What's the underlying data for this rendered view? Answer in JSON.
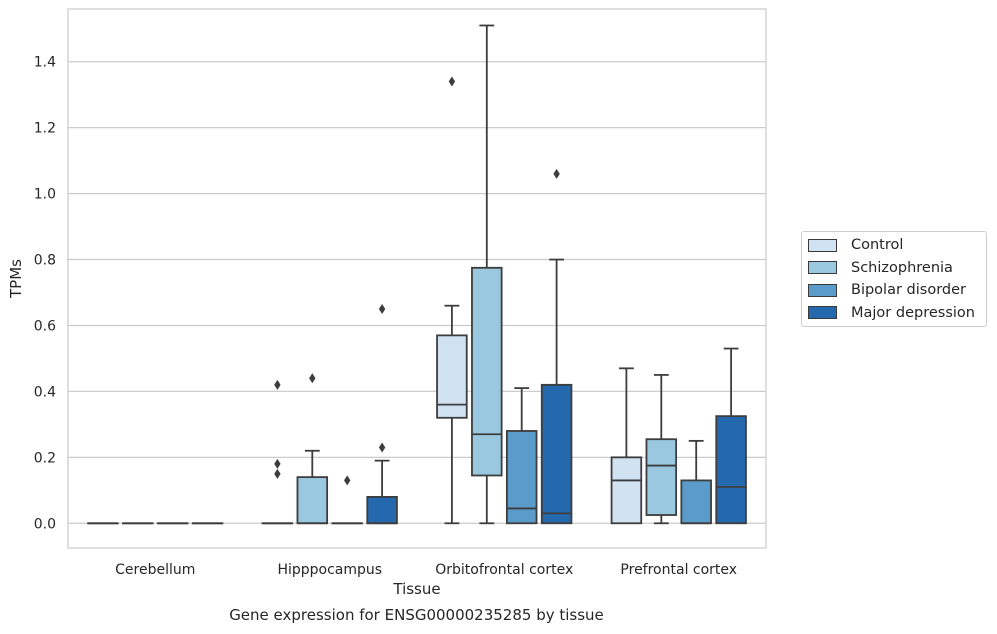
{
  "caption": "Gene expression for ENSG00000235285 by tissue",
  "chart_data": {
    "type": "box",
    "xlabel": "Tissue",
    "ylabel": "TPMs",
    "ylim": [
      -0.075,
      1.56
    ],
    "yticks": [
      0.0,
      0.2,
      0.4,
      0.6,
      0.8,
      1.0,
      1.2,
      1.4
    ],
    "ytick_labels": [
      "0.0",
      "0.2",
      "0.4",
      "0.6",
      "0.8",
      "1.0",
      "1.2",
      "1.4"
    ],
    "grid": "horizontal",
    "legend_position": "right",
    "categories": [
      "Cerebellum",
      "Hipppocampus",
      "Orbitofrontal cortex",
      "Prefrontal cortex"
    ],
    "series": [
      {
        "name": "Control",
        "color": "#d1e2f2",
        "boxes": [
          {
            "min": 0,
            "q1": 0,
            "median": 0,
            "q3": 0,
            "max": 0,
            "outliers": []
          },
          {
            "min": 0,
            "q1": 0,
            "median": 0,
            "q3": 0,
            "max": 0,
            "outliers": [
              0.15,
              0.18,
              0.42
            ]
          },
          {
            "min": 0,
            "q1": 0.32,
            "median": 0.36,
            "q3": 0.57,
            "max": 0.66,
            "outliers": [
              1.34
            ]
          },
          {
            "min": 0,
            "q1": 0,
            "median": 0.13,
            "q3": 0.2,
            "max": 0.47,
            "outliers": []
          }
        ]
      },
      {
        "name": "Schizophrenia",
        "color": "#9ac8e0",
        "boxes": [
          {
            "min": 0,
            "q1": 0,
            "median": 0,
            "q3": 0,
            "max": 0,
            "outliers": []
          },
          {
            "min": 0,
            "q1": 0,
            "median": 0,
            "q3": 0.14,
            "max": 0.22,
            "outliers": [
              0.44
            ]
          },
          {
            "min": 0,
            "q1": 0.145,
            "median": 0.27,
            "q3": 0.775,
            "max": 1.51,
            "outliers": []
          },
          {
            "min": 0,
            "q1": 0.025,
            "median": 0.175,
            "q3": 0.255,
            "max": 0.45,
            "outliers": []
          }
        ]
      },
      {
        "name": "Bipolar disorder",
        "color": "#5a9bc9",
        "boxes": [
          {
            "min": 0,
            "q1": 0,
            "median": 0,
            "q3": 0,
            "max": 0,
            "outliers": []
          },
          {
            "min": 0,
            "q1": 0,
            "median": 0,
            "q3": 0,
            "max": 0,
            "outliers": [
              0.13
            ]
          },
          {
            "min": 0,
            "q1": 0,
            "median": 0.045,
            "q3": 0.28,
            "max": 0.41,
            "outliers": []
          },
          {
            "min": 0,
            "q1": 0,
            "median": 0,
            "q3": 0.13,
            "max": 0.25,
            "outliers": []
          }
        ]
      },
      {
        "name": "Major depression",
        "color": "#2468ad",
        "boxes": [
          {
            "min": 0,
            "q1": 0,
            "median": 0,
            "q3": 0,
            "max": 0,
            "outliers": []
          },
          {
            "min": 0,
            "q1": 0,
            "median": 0,
            "q3": 0.08,
            "max": 0.19,
            "outliers": [
              0.23,
              0.65
            ]
          },
          {
            "min": 0,
            "q1": 0,
            "median": 0.03,
            "q3": 0.42,
            "max": 0.8,
            "outliers": [
              1.06
            ]
          },
          {
            "min": 0,
            "q1": 0,
            "median": 0.11,
            "q3": 0.325,
            "max": 0.53,
            "outliers": []
          }
        ]
      }
    ]
  }
}
